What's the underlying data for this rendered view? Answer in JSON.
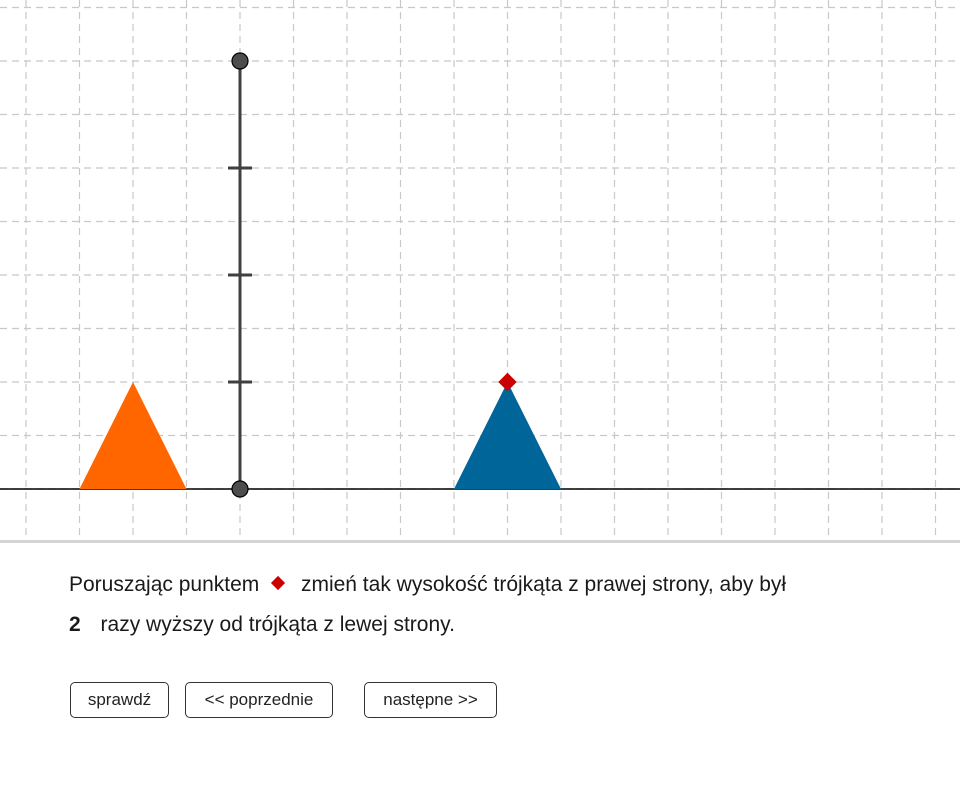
{
  "instruction": {
    "text_before_point": "Poruszając punktem",
    "text_after_point": "zmień tak wysokość trójkąta z prawej strony, aby był",
    "factor": "2",
    "text_line2": "razy wyższy od trójkąta z lewej strony."
  },
  "buttons": {
    "check_label": "sprawdź",
    "prev_label": "<< poprzednie",
    "next_label": "następne >>"
  },
  "colors": {
    "left_triangle": "#ff6600",
    "right_triangle": "#006699",
    "control_point": "#cc0000",
    "grid": "#c8c8c8",
    "axis": "#000000",
    "ruler": "#404040",
    "ruler_point_fill": "#4d4d4d"
  },
  "figure": {
    "left_triangle": {
      "base": 2,
      "height": 2
    },
    "right_triangle": {
      "base": 2,
      "height": 2
    },
    "ruler": {
      "length_units": 8,
      "tick_marks": [
        2,
        4,
        6
      ]
    }
  }
}
